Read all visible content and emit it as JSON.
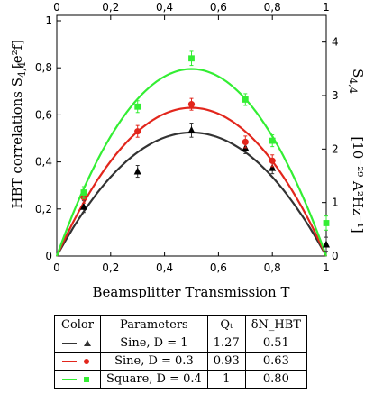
{
  "chart_data": {
    "type": "scatter",
    "xlabel": "Beamsplitter Transmission T",
    "ylabel_left": "HBT correlations S",
    "ylabel_left_sub": "4,4",
    "ylabel_left_unit": "[e²f]",
    "ylabel_right": "S",
    "ylabel_right_sub": "4,4",
    "ylabel_right_unit": "[10⁻²⁹ A²Hz⁻¹]",
    "xlim": [
      0,
      1
    ],
    "ylim_left": [
      0,
      1
    ],
    "ylim_right": [
      0,
      4.5
    ],
    "x_ticks": [
      "0",
      "0,2",
      "0,4",
      "0,6",
      "0,8",
      "1"
    ],
    "y_ticks_left": [
      "0",
      "0,2",
      "0,4",
      "0,6",
      "0,8",
      "1"
    ],
    "y_ticks_right": [
      "0",
      "1",
      "2",
      "3",
      "4"
    ],
    "series": [
      {
        "color": "#333333",
        "marker": "triangle",
        "peak": 0.525,
        "x": [
          0.1,
          0.3,
          0.5,
          0.7,
          0.8,
          1.0
        ],
        "y": [
          0.21,
          0.36,
          0.535,
          0.46,
          0.375,
          0.05
        ],
        "err": [
          0.025,
          0.025,
          0.03,
          0.025,
          0.025,
          0.03
        ]
      },
      {
        "color": "#e2261c",
        "marker": "circle",
        "peak": 0.63,
        "x": [
          0.1,
          0.3,
          0.5,
          0.7,
          0.8
        ],
        "y": [
          0.25,
          0.53,
          0.645,
          0.485,
          0.405
        ],
        "err": [
          0.025,
          0.025,
          0.025,
          0.025,
          0.025
        ]
      },
      {
        "color": "#33ee33",
        "marker": "square",
        "peak": 0.795,
        "x": [
          0.1,
          0.3,
          0.5,
          0.7,
          0.8,
          1.0
        ],
        "y": [
          0.27,
          0.635,
          0.84,
          0.665,
          0.49,
          0.14
        ],
        "err": [
          0.025,
          0.025,
          0.03,
          0.025,
          0.025,
          0.03
        ]
      }
    ]
  },
  "legend_table": {
    "headers": [
      "Color",
      "Parameters",
      "Qₜ",
      "δN_HBT"
    ],
    "rows": [
      {
        "params": "Sine, D = 1",
        "q": "1.27",
        "dn": "0.51",
        "color": "#333333",
        "marker": "triangle"
      },
      {
        "params": "Sine, D = 0.3",
        "q": "0.93",
        "dn": "0.63",
        "color": "#e2261c",
        "marker": "circle"
      },
      {
        "params": "Square, D = 0.4",
        "q": "1",
        "dn": "0.80",
        "color": "#33ee33",
        "marker": "square"
      }
    ]
  }
}
